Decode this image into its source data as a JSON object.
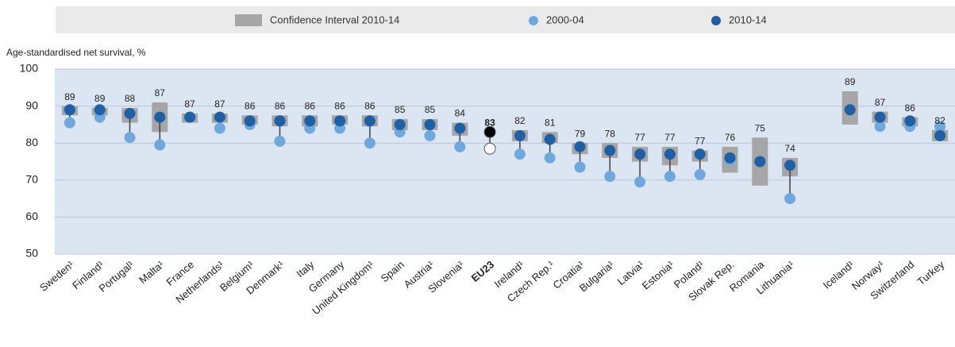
{
  "chart_data": {
    "type": "dot_plot",
    "y_label": "Age-standardised net survival, %",
    "categories": [
      "Sweden¹",
      "Finland¹",
      "Portugal¹",
      "Malta¹",
      "France",
      "Netherlands¹",
      "Belgium¹",
      "Denmark¹",
      "Italy",
      "Germany",
      "United Kingdom¹",
      "Spain",
      "Austria¹",
      "Slovenia¹",
      "EU23",
      "Ireland¹",
      "Czech Rep.¹",
      "Croatia¹",
      "Bulgaria¹",
      "Latvia¹",
      "Estonia¹",
      "Poland¹",
      "Slovak Rep.",
      "Romania",
      "Lithuania¹",
      null,
      "Iceland¹",
      "Norway¹",
      "Switzerland",
      "Turkey"
    ],
    "interval": {
      "name": "Confidence Interval 2010-14",
      "color": "#a6a6a6",
      "low": [
        87.5,
        87.5,
        85.5,
        83,
        85.5,
        85.5,
        85,
        84.5,
        84.5,
        85,
        84.5,
        83.5,
        83.5,
        82,
        null,
        80.5,
        80,
        77,
        76,
        75,
        74,
        75,
        72,
        68.5,
        71,
        null,
        85,
        85.5,
        84.5,
        80.5
      ],
      "high": [
        90,
        89.5,
        89.5,
        91,
        88,
        88,
        87.5,
        87.5,
        87.5,
        87.5,
        87.5,
        86.5,
        86.5,
        85.5,
        null,
        83.5,
        83,
        80,
        80,
        79,
        79,
        78,
        79,
        81.5,
        76,
        null,
        94,
        88.5,
        87,
        83.5
      ]
    },
    "series": [
      {
        "name": "2000-04",
        "color": "#6fa8dc",
        "highlight_color": "#ffffff",
        "values": [
          85.5,
          87,
          81.5,
          79.5,
          87,
          84,
          85,
          80.5,
          84,
          84,
          80,
          83,
          82,
          79,
          78.5,
          77,
          76,
          73.5,
          71,
          69.5,
          71,
          71.5,
          75.5,
          75,
          65,
          null,
          89,
          84.5,
          84.5,
          84.5
        ]
      },
      {
        "name": "2010-14",
        "color": "#1f5fa5",
        "highlight_color": "#000000",
        "values": [
          89,
          89,
          88,
          87,
          87,
          87,
          86,
          86,
          86,
          86,
          86,
          85,
          85,
          84,
          83,
          82,
          81,
          79,
          78,
          77,
          77,
          77,
          76,
          75,
          74,
          null,
          89,
          87,
          86,
          82
        ]
      }
    ],
    "highlight_category": 14,
    "connector_color": "#404040",
    "ylim": [
      50,
      100
    ],
    "yticks": [
      50,
      60,
      70,
      80,
      90,
      100
    ],
    "grid": true,
    "plot_background": "#dce6f2"
  }
}
